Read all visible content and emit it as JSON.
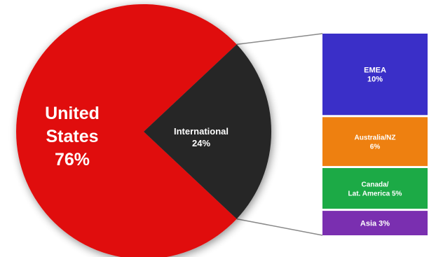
{
  "chart_data": {
    "type": "pie",
    "slices": [
      {
        "label_lines": [
          "United",
          "States",
          "76%"
        ],
        "value": 76,
        "color": "#e0100f"
      },
      {
        "label_lines": [
          "International",
          "24%"
        ],
        "value": 24,
        "color": "#262626"
      }
    ],
    "breakdown": {
      "of": "International",
      "segments": [
        {
          "label_lines": [
            "EMEA",
            "10%"
          ],
          "value": 10,
          "color": "#3a2fc8"
        },
        {
          "label_lines": [
            "Australia/NZ",
            "6%"
          ],
          "value": 6,
          "color": "#ee8010"
        },
        {
          "label_lines": [
            "Canada/",
            "Lat. America 5%"
          ],
          "value": 5,
          "color": "#1caa46"
        },
        {
          "label_lines": [
            "Asia 3%"
          ],
          "value": 3,
          "color": "#7a2fb0"
        }
      ]
    }
  }
}
